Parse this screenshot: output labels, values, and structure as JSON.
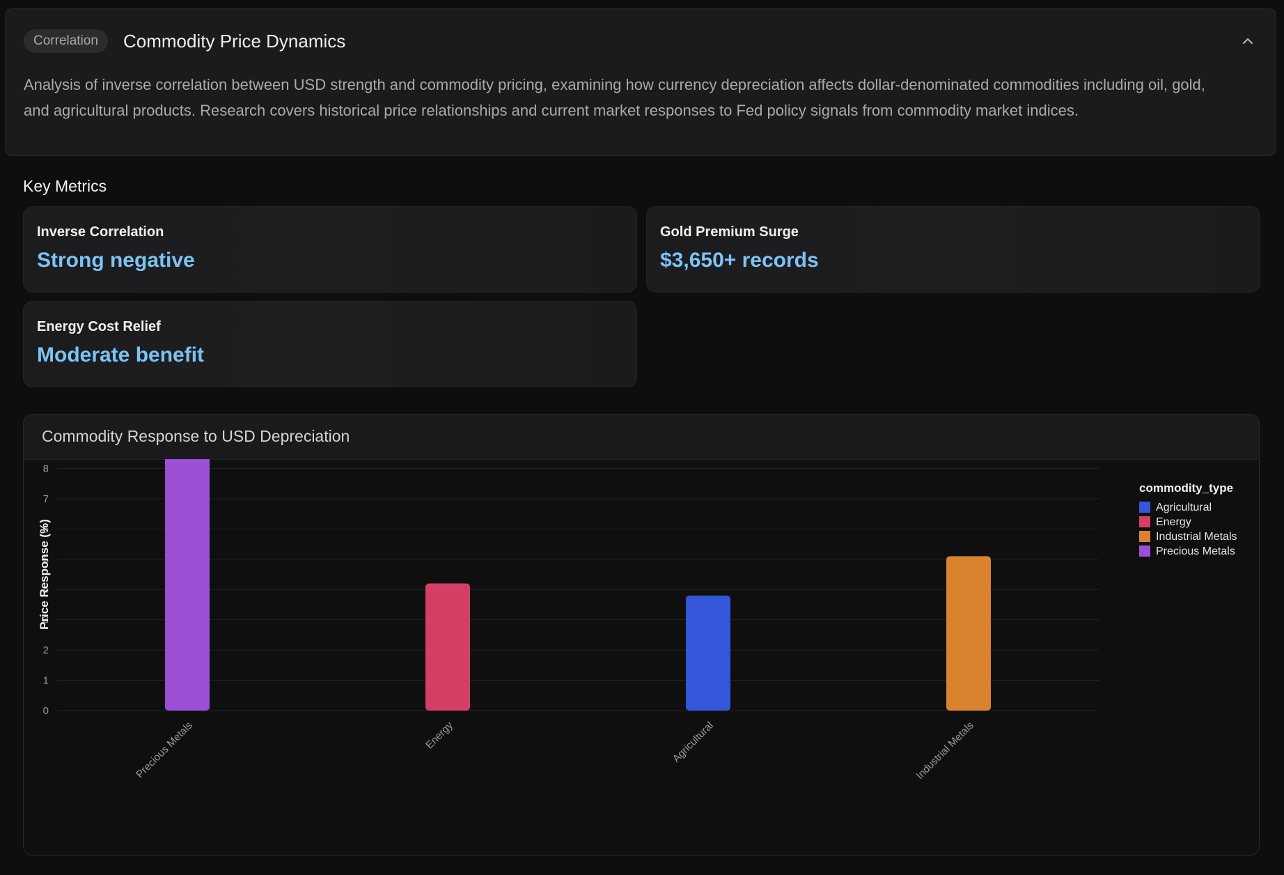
{
  "header": {
    "badge": "Correlation",
    "title": "Commodity Price Dynamics",
    "collapse_icon": "chevron-up-icon",
    "description": "Analysis of inverse correlation between USD strength and commodity pricing, examining how currency depreciation affects dollar-denominated commodities including oil, gold, and agricultural products. Research covers historical price relationships and current market responses to Fed policy signals from commodity market indices."
  },
  "key_metrics": {
    "title": "Key Metrics",
    "items": [
      {
        "label": "Inverse Correlation",
        "value": "Strong negative"
      },
      {
        "label": "Gold Premium Surge",
        "value": "$3,650+ records"
      },
      {
        "label": "Energy Cost Relief",
        "value": "Moderate benefit"
      }
    ]
  },
  "chart": {
    "title": "Commodity Response to USD Depreciation"
  },
  "chart_data": {
    "type": "bar",
    "title": "Commodity Response to USD Depreciation",
    "xlabel": "",
    "ylabel": "Price Response (%)",
    "ylim": [
      0,
      9
    ],
    "yticks": [
      0,
      1,
      2,
      3,
      4,
      5,
      6,
      7,
      8,
      9
    ],
    "grid": true,
    "legend_position": "top-right",
    "legend_title": "commodity_type",
    "categories": [
      "Precious Metals",
      "Energy",
      "Agricultural",
      "Industrial Metals"
    ],
    "values": [
      8.5,
      4.2,
      3.8,
      5.1
    ],
    "bar_colors": [
      "#9b4fd4",
      "#d43f66",
      "#3456d9",
      "#d9832e"
    ],
    "legend": [
      {
        "name": "Agricultural",
        "color": "#3456d9"
      },
      {
        "name": "Energy",
        "color": "#d43f66"
      },
      {
        "name": "Industrial Metals",
        "color": "#d9832e"
      },
      {
        "name": "Precious Metals",
        "color": "#9b4fd4"
      }
    ]
  }
}
